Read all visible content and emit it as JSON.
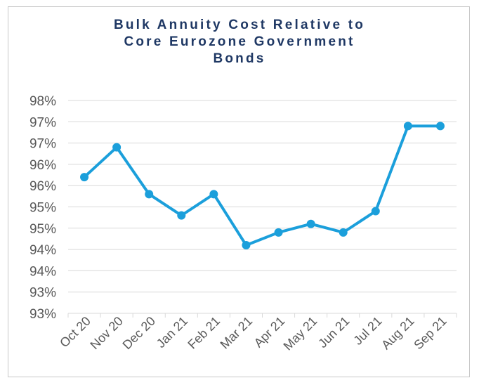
{
  "chart_data": {
    "type": "line",
    "title_lines": [
      "Bulk Annuity Cost Relative to",
      "Core Eurozone Government",
      "Bonds"
    ],
    "categories": [
      "Oct 20",
      "Nov 20",
      "Dec 20",
      "Jan 21",
      "Feb 21",
      "Mar 21",
      "Apr 21",
      "May 21",
      "Jun 21",
      "Jul 21",
      "Aug 21",
      "Sep 21"
    ],
    "values": [
      95.7,
      96.4,
      95.3,
      94.8,
      95.3,
      94.1,
      94.4,
      94.6,
      94.4,
      94.9,
      96.9,
      96.9
    ],
    "ylim": [
      92.5,
      97.5
    ],
    "ytick_values": [
      92.5,
      93.0,
      93.5,
      94.0,
      94.5,
      95.0,
      95.5,
      96.0,
      96.5,
      97.0,
      97.5
    ],
    "ytick_labels": [
      "93%",
      "93%",
      "94%",
      "94%",
      "95%",
      "95%",
      "96%",
      "96%",
      "97%",
      "97%",
      "98%"
    ],
    "grid": true,
    "legend": "none",
    "line_color": "#1b9fdb",
    "grid_color": "#d9d9d9",
    "title_color": "#1f3864"
  }
}
